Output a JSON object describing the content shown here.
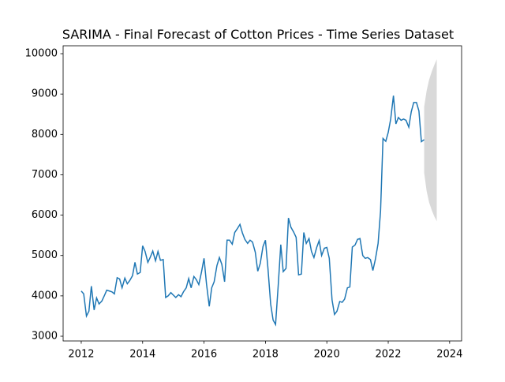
{
  "chart_data": {
    "type": "line",
    "title": "SARIMA - Final Forecast of Cotton Prices - Time Series Dataset",
    "color": "#1f77b4",
    "x": [
      2012.0,
      2012.08,
      2012.17,
      2012.25,
      2012.33,
      2012.42,
      2012.5,
      2012.58,
      2012.67,
      2012.75,
      2012.83,
      2012.92,
      2013.0,
      2013.08,
      2013.17,
      2013.25,
      2013.33,
      2013.42,
      2013.5,
      2013.58,
      2013.67,
      2013.75,
      2013.83,
      2013.92,
      2014.0,
      2014.08,
      2014.17,
      2014.25,
      2014.33,
      2014.42,
      2014.5,
      2014.58,
      2014.67,
      2014.75,
      2014.83,
      2014.92,
      2015.0,
      2015.08,
      2015.17,
      2015.25,
      2015.33,
      2015.42,
      2015.5,
      2015.58,
      2015.67,
      2015.75,
      2015.83,
      2015.92,
      2016.0,
      2016.08,
      2016.17,
      2016.25,
      2016.33,
      2016.42,
      2016.5,
      2016.58,
      2016.67,
      2016.75,
      2016.83,
      2016.92,
      2017.0,
      2017.08,
      2017.17,
      2017.25,
      2017.33,
      2017.42,
      2017.5,
      2017.58,
      2017.67,
      2017.75,
      2017.83,
      2017.92,
      2018.0,
      2018.08,
      2018.17,
      2018.25,
      2018.33,
      2018.42,
      2018.5,
      2018.58,
      2018.67,
      2018.75,
      2018.83,
      2018.92,
      2019.0,
      2019.08,
      2019.17,
      2019.25,
      2019.33,
      2019.42,
      2019.5,
      2019.58,
      2019.67,
      2019.75,
      2019.83,
      2019.92,
      2020.0,
      2020.08,
      2020.17,
      2020.25,
      2020.33,
      2020.42,
      2020.5,
      2020.58,
      2020.67,
      2020.75,
      2020.83,
      2020.92,
      2021.0,
      2021.08,
      2021.17,
      2021.25,
      2021.33,
      2021.42,
      2021.5,
      2021.58,
      2021.67,
      2021.75,
      2021.83,
      2021.92,
      2022.0,
      2022.08,
      2022.17,
      2022.25,
      2022.33,
      2022.42,
      2022.5,
      2022.58,
      2022.67,
      2022.75,
      2022.83,
      2022.92,
      2023.0,
      2023.08,
      2023.17
    ],
    "values": [
      4120,
      4050,
      3500,
      3620,
      4240,
      3650,
      3950,
      3800,
      3870,
      4000,
      4140,
      4120,
      4100,
      4050,
      4450,
      4420,
      4200,
      4440,
      4300,
      4380,
      4500,
      4830,
      4540,
      4580,
      5240,
      5100,
      4830,
      4960,
      5110,
      4870,
      5100,
      4880,
      4900,
      3960,
      4000,
      4080,
      4020,
      3960,
      4030,
      3980,
      4100,
      4200,
      4430,
      4200,
      4480,
      4400,
      4280,
      4600,
      4930,
      4300,
      3740,
      4200,
      4350,
      4750,
      4950,
      4780,
      4350,
      5380,
      5380,
      5280,
      5570,
      5660,
      5770,
      5560,
      5400,
      5300,
      5380,
      5330,
      5080,
      4610,
      4800,
      5220,
      5380,
      4700,
      3800,
      3400,
      3290,
      4300,
      5270,
      4600,
      4680,
      5930,
      5700,
      5580,
      5450,
      4520,
      4540,
      5570,
      5300,
      5420,
      5100,
      4950,
      5200,
      5370,
      5000,
      5180,
      5200,
      4930,
      3900,
      3540,
      3620,
      3860,
      3840,
      3920,
      4200,
      4220,
      5210,
      5260,
      5400,
      5420,
      5000,
      4930,
      4950,
      4900,
      4630,
      4900,
      5300,
      6100,
      7900,
      7830,
      8050,
      8380,
      8960,
      8260,
      8420,
      8350,
      8380,
      8350,
      8180,
      8560,
      8790,
      8790,
      8580,
      7820,
      7870
    ],
    "band": {
      "color": "#808080",
      "x": [
        2023.17,
        2023.25,
        2023.33,
        2023.42,
        2023.5,
        2023.58
      ],
      "upper": [
        8680,
        9080,
        9350,
        9560,
        9720,
        9860
      ],
      "lower": [
        7050,
        6600,
        6320,
        6120,
        5970,
        5850
      ]
    },
    "xlim": [
      2011.41,
      2024.39
    ],
    "ylim": [
      2883,
      10196
    ],
    "xticks": [
      2012,
      2014,
      2016,
      2018,
      2020,
      2022,
      2024
    ],
    "yticks": [
      3000,
      4000,
      5000,
      6000,
      7000,
      8000,
      9000,
      10000
    ]
  }
}
